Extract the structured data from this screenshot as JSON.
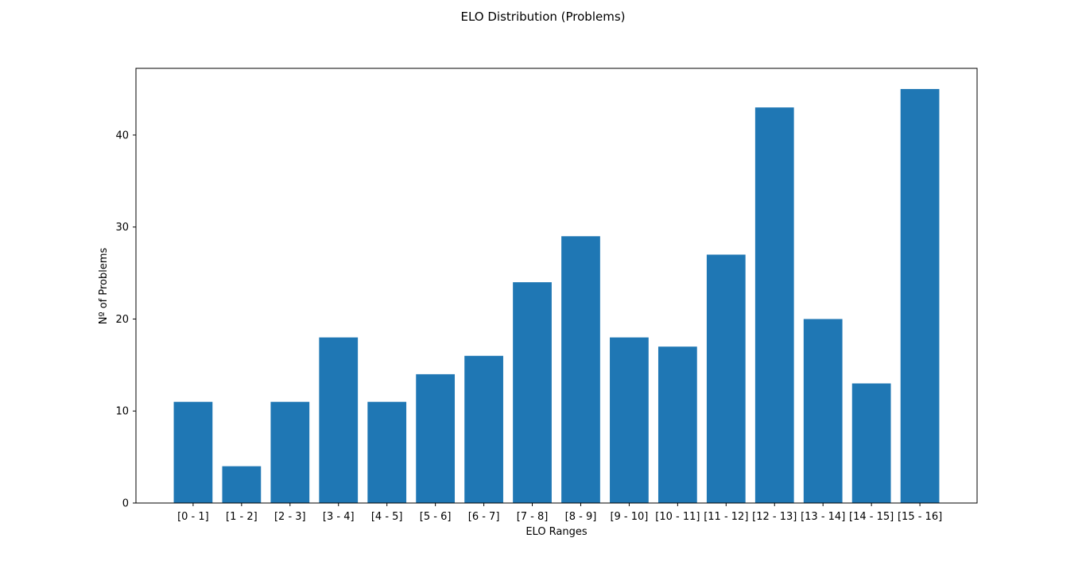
{
  "chart_data": {
    "type": "bar",
    "title": "ELO Distribution (Problems)",
    "xlabel": "ELO Ranges",
    "ylabel": "Nº of Problems",
    "categories": [
      "[0 - 1]",
      "[1 - 2]",
      "[2 - 3]",
      "[3 - 4]",
      "[4 - 5]",
      "[5 - 6]",
      "[6 - 7]",
      "[7 - 8]",
      "[8 - 9]",
      "[9 - 10]",
      "[10 - 11]",
      "[11 - 12]",
      "[12 - 13]",
      "[13 - 14]",
      "[14 - 15]",
      "[15 - 16]"
    ],
    "values": [
      11,
      4,
      11,
      18,
      11,
      14,
      16,
      24,
      29,
      18,
      17,
      27,
      43,
      20,
      13,
      45
    ],
    "ylim": [
      0,
      47.25
    ],
    "yticks": [
      0,
      10,
      20,
      30,
      40
    ],
    "grid": false,
    "colors": {
      "bar": "#1f77b4",
      "axis": "#000000"
    }
  }
}
